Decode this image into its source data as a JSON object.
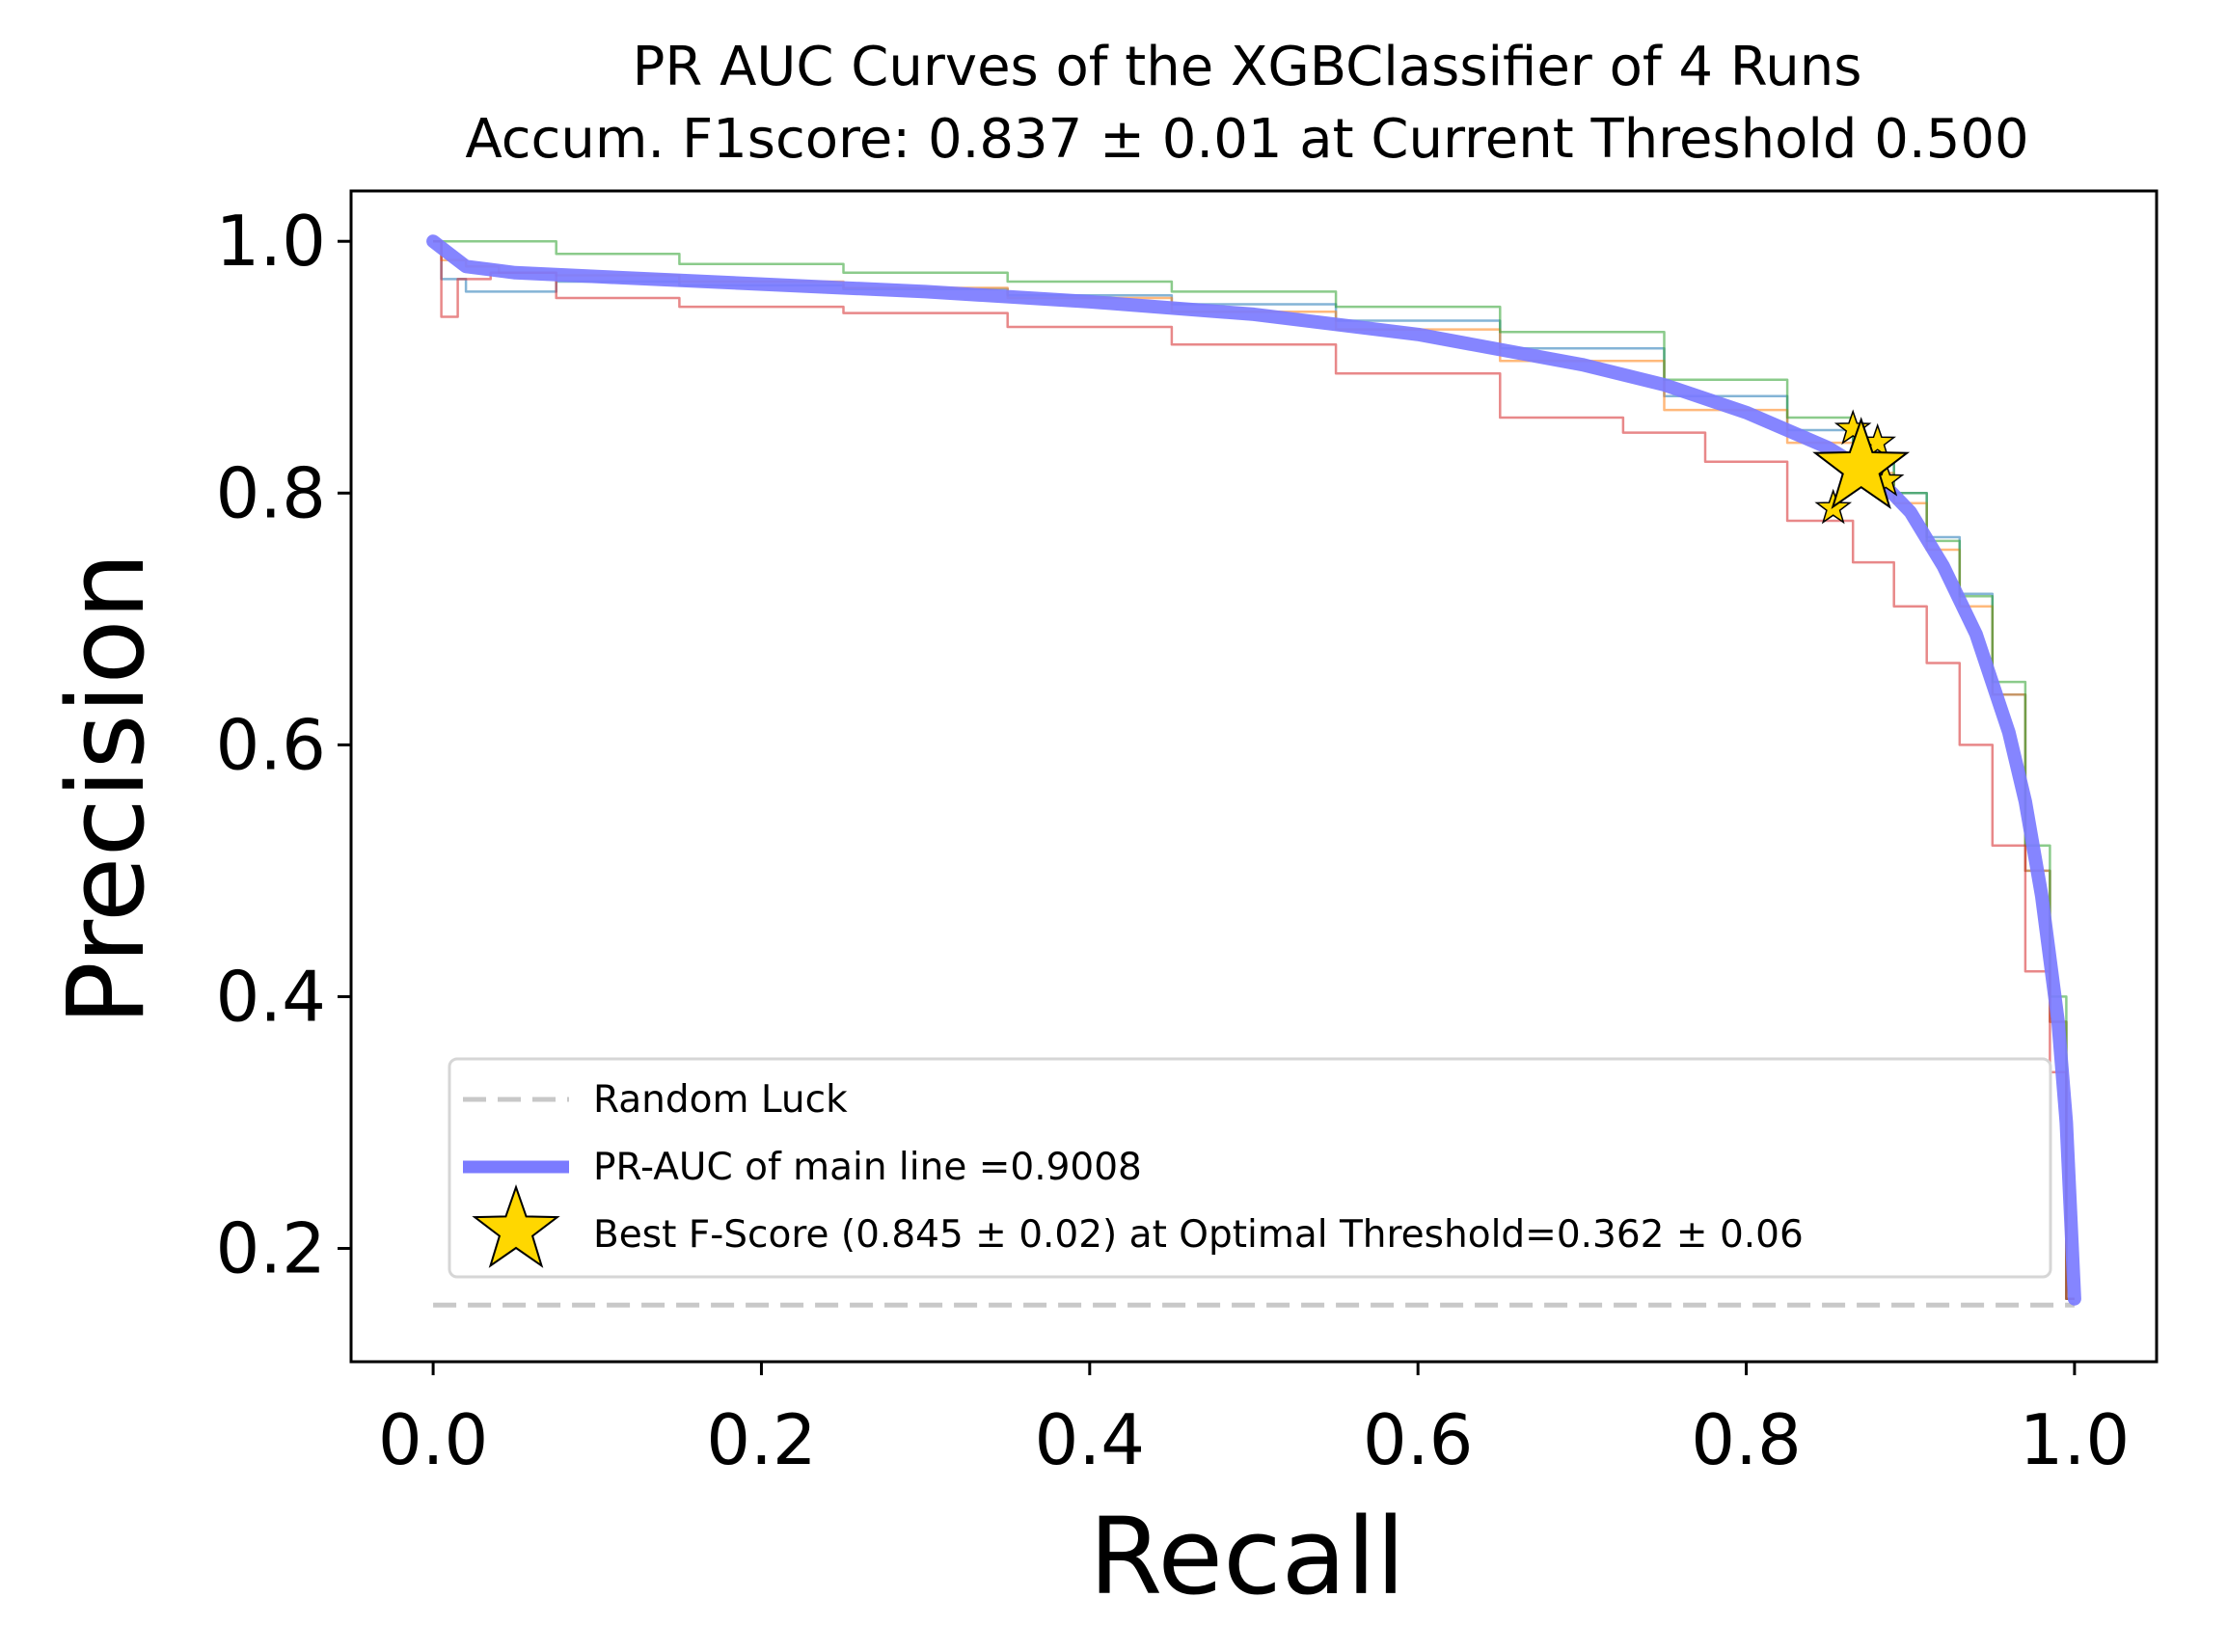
{
  "chart_data": {
    "type": "line",
    "title_line1": "PR AUC Curves of the XGBClassifier of 4 Runs",
    "title_line2": "Accum. F1score: 0.837 ± 0.01 at Current Threshold 0.500",
    "xlabel": "Recall",
    "ylabel": "Precision",
    "xlim": [
      -0.05,
      1.05
    ],
    "ylim": [
      0.11,
      1.04
    ],
    "xticks": [
      0.0,
      0.2,
      0.4,
      0.6,
      0.8,
      1.0
    ],
    "xtick_labels": [
      "0.0",
      "0.2",
      "0.4",
      "0.6",
      "0.8",
      "1.0"
    ],
    "yticks": [
      0.2,
      0.4,
      0.6,
      0.8,
      1.0
    ],
    "ytick_labels": [
      "0.2",
      "0.4",
      "0.6",
      "0.8",
      "1.0"
    ],
    "legend_position": "lower-center",
    "random_luck": {
      "label": "Random Luck",
      "y": 0.155,
      "x": [
        0.0,
        1.0
      ],
      "color": "#c8c8c8"
    },
    "main_line": {
      "label": "PR-AUC of main line =0.9008",
      "color": "#7b7bff",
      "x": [
        0.0,
        0.01,
        0.02,
        0.05,
        0.1,
        0.2,
        0.3,
        0.4,
        0.5,
        0.6,
        0.7,
        0.75,
        0.8,
        0.85,
        0.88,
        0.9,
        0.92,
        0.94,
        0.96,
        0.97,
        0.98,
        0.99,
        0.995,
        1.0
      ],
      "y": [
        1.0,
        0.99,
        0.98,
        0.975,
        0.972,
        0.966,
        0.96,
        0.952,
        0.942,
        0.926,
        0.902,
        0.886,
        0.864,
        0.836,
        0.812,
        0.785,
        0.742,
        0.688,
        0.61,
        0.555,
        0.48,
        0.38,
        0.3,
        0.16
      ]
    },
    "runs": [
      {
        "color": "#1f77b4",
        "x": [
          0.0,
          0.01,
          0.03,
          0.05,
          0.1,
          0.2,
          0.3,
          0.4,
          0.5,
          0.6,
          0.7,
          0.8,
          0.85,
          0.88,
          0.9,
          0.92,
          0.94,
          0.96,
          0.98,
          0.99,
          1.0
        ],
        "y": [
          1.0,
          0.97,
          0.96,
          0.96,
          0.968,
          0.965,
          0.962,
          0.957,
          0.95,
          0.937,
          0.915,
          0.877,
          0.85,
          0.825,
          0.8,
          0.765,
          0.72,
          0.64,
          0.5,
          0.38,
          0.16
        ]
      },
      {
        "color": "#ff7f0e",
        "x": [
          0.0,
          0.01,
          0.03,
          0.05,
          0.1,
          0.2,
          0.3,
          0.4,
          0.5,
          0.6,
          0.7,
          0.8,
          0.85,
          0.88,
          0.9,
          0.92,
          0.94,
          0.96,
          0.98,
          0.99,
          1.0
        ],
        "y": [
          1.0,
          0.985,
          0.98,
          0.975,
          0.973,
          0.968,
          0.963,
          0.955,
          0.944,
          0.93,
          0.905,
          0.866,
          0.84,
          0.816,
          0.792,
          0.755,
          0.71,
          0.64,
          0.5,
          0.38,
          0.16
        ]
      },
      {
        "color": "#2ca02c",
        "x": [
          0.0,
          0.01,
          0.05,
          0.1,
          0.2,
          0.3,
          0.4,
          0.5,
          0.6,
          0.7,
          0.8,
          0.85,
          0.88,
          0.9,
          0.92,
          0.94,
          0.96,
          0.98,
          0.99,
          1.0
        ],
        "y": [
          1.0,
          1.0,
          1.0,
          0.99,
          0.982,
          0.975,
          0.968,
          0.96,
          0.948,
          0.928,
          0.89,
          0.86,
          0.83,
          0.8,
          0.762,
          0.718,
          0.65,
          0.52,
          0.4,
          0.16
        ]
      },
      {
        "color": "#d62728",
        "x": [
          0.0,
          0.01,
          0.02,
          0.05,
          0.1,
          0.2,
          0.3,
          0.4,
          0.5,
          0.6,
          0.7,
          0.75,
          0.8,
          0.85,
          0.88,
          0.9,
          0.92,
          0.94,
          0.96,
          0.98,
          0.99,
          1.0
        ],
        "y": [
          1.0,
          0.94,
          0.97,
          0.975,
          0.955,
          0.948,
          0.943,
          0.932,
          0.918,
          0.895,
          0.86,
          0.848,
          0.825,
          0.778,
          0.745,
          0.71,
          0.665,
          0.6,
          0.52,
          0.42,
          0.34,
          0.16
        ]
      }
    ],
    "best_fscore": {
      "label": "Best F-Score (0.845 ± 0.02) at Optimal Threshold=0.362 ± 0.06",
      "color": "#ffd700",
      "main": {
        "x": 0.87,
        "y": 0.82
      },
      "runs": [
        {
          "x": 0.865,
          "y": 0.851
        },
        {
          "x": 0.88,
          "y": 0.84
        },
        {
          "x": 0.853,
          "y": 0.788
        },
        {
          "x": 0.885,
          "y": 0.81
        }
      ]
    }
  }
}
